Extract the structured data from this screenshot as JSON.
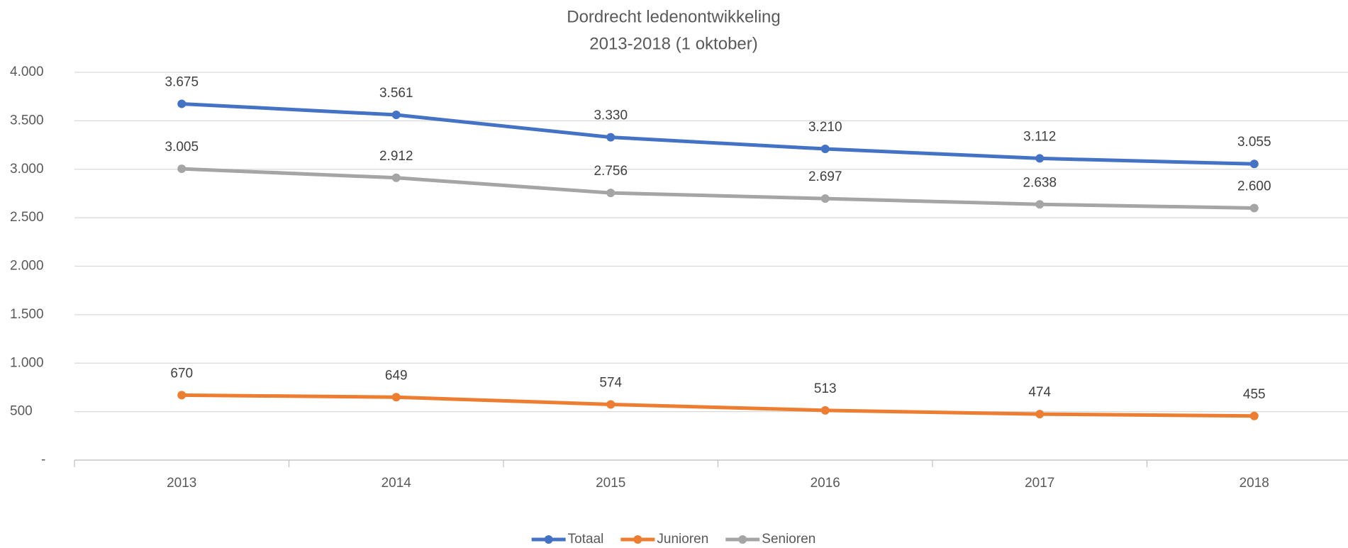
{
  "chart_data": {
    "type": "line",
    "title": "Dordrecht ledenontwikkeling",
    "subtitle": "2013-2018 (1 oktober)",
    "categories": [
      "2013",
      "2014",
      "2015",
      "2016",
      "2017",
      "2018"
    ],
    "series": [
      {
        "name": "Totaal",
        "color": "#4472c4",
        "values": [
          3675,
          3561,
          3330,
          3210,
          3112,
          3055
        ],
        "value_labels": [
          "3.675",
          "3.561",
          "3.330",
          "3.210",
          "3.112",
          "3.055"
        ]
      },
      {
        "name": "Junioren",
        "color": "#ed7d31",
        "values": [
          670,
          649,
          574,
          513,
          474,
          455
        ]
      },
      {
        "name": "Senioren",
        "color": "#a5a5a5",
        "values": [
          3005,
          2912,
          2756,
          2697,
          2638,
          2600
        ],
        "value_labels": [
          "3.005",
          "2.912",
          "2.756",
          "2.697",
          "2.638",
          "2.600"
        ]
      }
    ],
    "ylim": [
      0,
      4000
    ],
    "yticks": [
      {
        "value": 0,
        "label": "-"
      },
      500,
      {
        "value": 1000,
        "label": "1.000"
      },
      {
        "value": 1500,
        "label": "1.500"
      },
      {
        "value": 2000,
        "label": "2.000"
      },
      {
        "value": 2500,
        "label": "2.500"
      },
      {
        "value": 3000,
        "label": "3.000"
      },
      {
        "value": 3500,
        "label": "3.500"
      },
      {
        "value": 4000,
        "label": "4.000"
      }
    ],
    "grid": true,
    "legend": "bottom"
  }
}
